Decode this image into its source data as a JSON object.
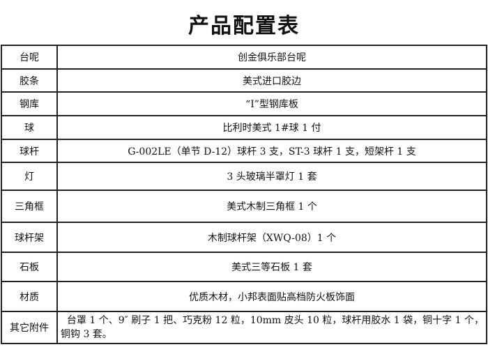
{
  "title": "产品配置表",
  "rows": [
    {
      "label": "台呢",
      "value": "创金俱乐部台呢"
    },
    {
      "label": "胶条",
      "value": "美式进口胶边"
    },
    {
      "label": "钢库",
      "value": "“I”型钢库板"
    },
    {
      "label": "球",
      "value": "比利时美式 1#球 1 付"
    },
    {
      "label": "球杆",
      "value": "G-002LE（单节 D-12）球杆 3 支，ST-3 球杆 1 支，短架杆 1 支"
    },
    {
      "label": "灯",
      "value": "3 头玻璃半罩灯 1 套"
    },
    {
      "label": "三角框",
      "value": "美式木制三角框 1 个"
    },
    {
      "label": "球杆架",
      "value": "木制球杆架（XWQ-08）1 个"
    },
    {
      "label": "石板",
      "value": "美式三等石板 1 套"
    },
    {
      "label": "材质",
      "value": "优质木材，小邦表面贴高档防火板饰面"
    },
    {
      "label": "其它附件",
      "value": "  台罩 1 个、9″ 刷子 1 把、巧克粉 12 粒，10mm 皮头 10 粒，球杆用胶水 1 袋，铜十字 1 个，铜钩 3 套。"
    }
  ]
}
